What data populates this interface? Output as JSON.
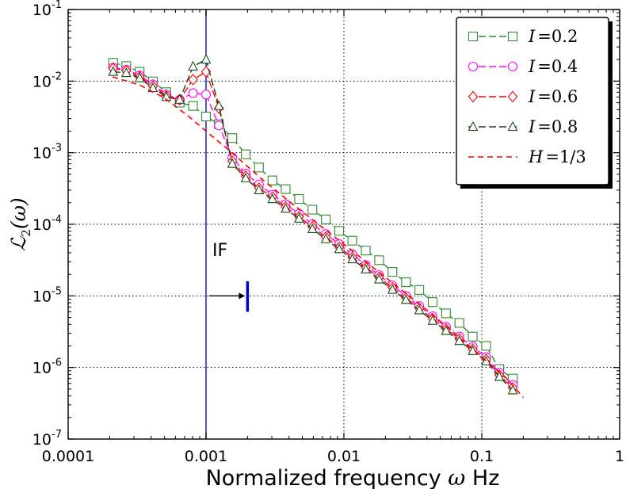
{
  "chart_data": {
    "type": "line",
    "xscale": "log",
    "yscale": "log",
    "xlim": [
      0.0001,
      1
    ],
    "ylim": [
      1e-07,
      0.1
    ],
    "grid": true,
    "grid_style": "dotted",
    "legend_position": "top-right",
    "xlabel_text": "Normalized frequency ",
    "xlabel_symbol": "ω",
    "xlabel_unit": " Hz",
    "ylabel_main": "ℒ",
    "ylabel_sub": "2",
    "ylabel_arg": "(ω)",
    "x_tick_labels": [
      "0.0001",
      "0.001",
      "0.01",
      "0.1",
      "1"
    ],
    "x_tick_values": [
      0.0001,
      0.001,
      0.01,
      0.1,
      1
    ],
    "y_tick_exponents": [
      "-7",
      "-6",
      "-5",
      "-4",
      "-3",
      "-2",
      "-1"
    ],
    "y_tick_base": "10",
    "annotation": {
      "text": "IF",
      "arrow_from_x": 0.001,
      "arrow_to_x": 0.002,
      "y": 1e-05,
      "marker_x": 0.002,
      "marker_y_range": [
        6e-06,
        1.6e-05
      ],
      "color": "#0000cc"
    },
    "vline": {
      "x": 0.001,
      "color": "#2233bb"
    },
    "x": [
      0.000212,
      0.000264,
      0.00033,
      0.000412,
      0.000515,
      0.000644,
      0.000805,
      0.001,
      0.00124,
      0.00155,
      0.00194,
      0.00242,
      0.00303,
      0.00378,
      0.00473,
      0.00591,
      0.00739,
      0.00924,
      0.0115,
      0.0144,
      0.018,
      0.0225,
      0.0282,
      0.0352,
      0.044,
      0.055,
      0.0688,
      0.086,
      0.1075,
      0.134,
      0.168
    ],
    "series": [
      {
        "name": "I = 0.2",
        "label_var": "I",
        "label_eq": "=",
        "label_val": "0.2",
        "color": "#2e8b2e",
        "line_color": "#2e8b2e",
        "marker": "square",
        "fill": "none",
        "values": [
          0.018,
          0.0162,
          0.0135,
          0.0099,
          0.007,
          0.005,
          0.0045,
          0.0032,
          0.0025,
          0.0016,
          0.00095,
          0.00062,
          0.00041,
          0.00031,
          0.000226,
          0.00016,
          0.000117,
          8.1e-05,
          5.9e-05,
          4.3e-05,
          3.15e-05,
          2.16e-05,
          1.55e-05,
          1.21e-05,
          8.2e-06,
          5.7e-06,
          4.2e-06,
          2.7e-06,
          2e-06,
          9.5e-07,
          7e-07
        ]
      },
      {
        "name": "I = 0.4",
        "label_var": "I",
        "label_eq": "=",
        "label_val": "0.4",
        "color": "#ff00ff",
        "line_color": "#ff00ff",
        "marker": "circle",
        "fill": "none",
        "values": [
          0.0155,
          0.0145,
          0.012,
          0.009,
          0.0065,
          0.0055,
          0.0068,
          0.0065,
          0.0024,
          0.00086,
          0.00051,
          0.00036,
          0.00026,
          0.00019,
          0.00014,
          0.0001,
          7.3e-05,
          5.3e-05,
          3.8e-05,
          2.7e-05,
          1.95e-05,
          1.4e-05,
          1e-05,
          7.2e-06,
          5.2e-06,
          3.7e-06,
          2.7e-06,
          1.95e-06,
          1.4e-06,
          8.5e-07,
          5.7e-07
        ]
      },
      {
        "name": "I = 0.6",
        "label_var": "I",
        "label_eq": "=",
        "label_val": "0.6",
        "color": "#ff0000",
        "line_color": "#ff0000",
        "marker": "diamond",
        "fill": "none",
        "values": [
          0.015,
          0.014,
          0.0115,
          0.0085,
          0.0062,
          0.0055,
          0.0105,
          0.0135,
          0.0042,
          0.00076,
          0.00047,
          0.00032,
          0.00024,
          0.000175,
          0.000127,
          9.2e-05,
          6.6e-05,
          4.8e-05,
          3.45e-05,
          2.5e-05,
          1.8e-05,
          1.3e-05,
          9.3e-06,
          6.7e-06,
          4.8e-06,
          3.45e-06,
          2.5e-06,
          1.8e-06,
          1.3e-06,
          7.8e-07,
          5.2e-07
        ]
      },
      {
        "name": "I = 0.8",
        "label_var": "I",
        "label_eq": "=",
        "label_val": "0.8",
        "color": "#1a4d1a",
        "line_color": "#1a3a1a",
        "marker": "triangle",
        "fill": "none",
        "values": [
          0.0135,
          0.013,
          0.011,
          0.008,
          0.006,
          0.0055,
          0.016,
          0.02,
          0.0045,
          0.0007,
          0.00044,
          0.0003,
          0.000225,
          0.000165,
          0.00012,
          8.6e-05,
          6.2e-05,
          4.5e-05,
          3.25e-05,
          2.35e-05,
          1.7e-05,
          1.22e-05,
          8.8e-06,
          6.3e-06,
          4.5e-06,
          3.25e-06,
          2.35e-06,
          1.7e-06,
          1.22e-06,
          7.4e-07,
          4.8e-07
        ]
      },
      {
        "name": "H = 1/3",
        "label_var": "H",
        "label_eq": "=",
        "label_val": "1/3",
        "color": "#ff0000",
        "line_color": "#ff0000",
        "marker": "none",
        "dashed": true,
        "x": [
          0.00021,
          0.00033,
          0.0005,
          0.00075,
          0.001,
          0.0015,
          0.0025,
          0.004,
          0.007,
          0.012,
          0.02,
          0.035,
          0.06,
          0.1,
          0.15,
          0.2
        ],
        "values": [
          0.0115,
          0.0088,
          0.0058,
          0.0032,
          0.002,
          0.00105,
          0.00044,
          0.00021,
          9e-05,
          4e-05,
          1.82e-05,
          7.8e-06,
          3.3e-06,
          1.4e-06,
          7.2e-07,
          3.8e-07
        ]
      }
    ]
  }
}
